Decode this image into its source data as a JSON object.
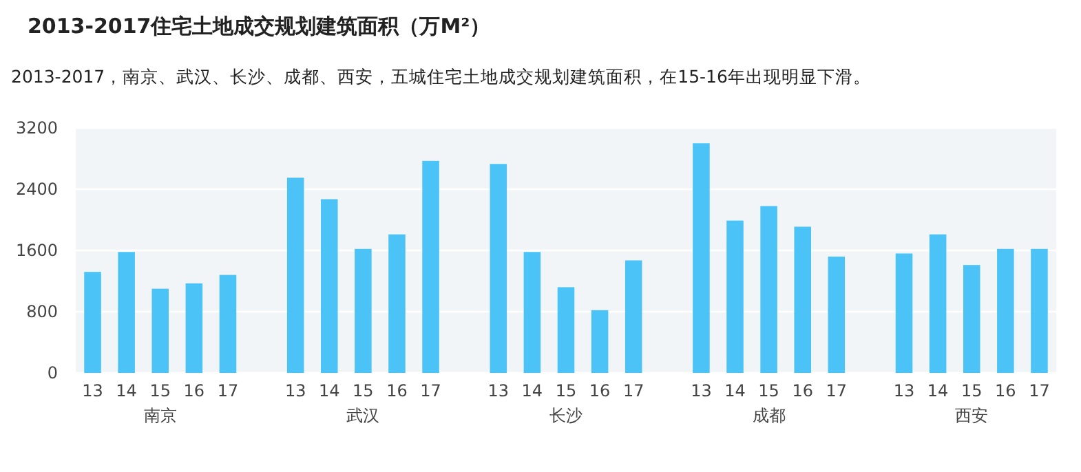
{
  "chart_data": {
    "type": "bar",
    "title": "2013-2017住宅土地成交规划建筑面积（万M²）",
    "subtitle": "2013-2017，南京、武汉、长沙、成都、西安，五城住宅土地成交规划建筑面积，在15-16年出现明显下滑。",
    "categories": [
      "13",
      "14",
      "15",
      "16",
      "17",
      null,
      "13",
      "14",
      "15",
      "16",
      "17",
      null,
      "13",
      "14",
      "15",
      "16",
      "17",
      null,
      "13",
      "14",
      "15",
      "16",
      "17",
      null,
      "13",
      "14",
      "15",
      "16",
      "17"
    ],
    "values": [
      1320,
      1580,
      1100,
      1170,
      1280,
      null,
      2550,
      2270,
      1620,
      1810,
      2770,
      null,
      2730,
      1580,
      1120,
      820,
      1470,
      null,
      3000,
      1990,
      2180,
      1910,
      1520,
      null,
      1560,
      1810,
      1410,
      1620,
      1620
    ],
    "color": "#4cc3f6",
    "ylim": [
      0,
      3200
    ],
    "yticks": [
      0,
      800,
      1600,
      2400,
      3200
    ],
    "grid": "y",
    "annotations": [
      "南京",
      "武汉",
      "长沙",
      "成都",
      "西安"
    ]
  }
}
